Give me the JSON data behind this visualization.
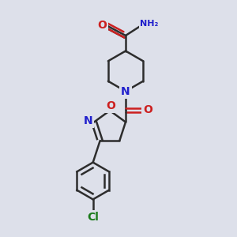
{
  "bg_color": "#dde0ea",
  "bond_color": "#2d2d2d",
  "N_color": "#2020cc",
  "O_color": "#cc2020",
  "Cl_color": "#1a7a1a",
  "font_size": 9,
  "line_width": 1.8,
  "figsize": [
    3.0,
    3.0
  ],
  "dpi": 100,
  "xlim": [
    0,
    10
  ],
  "ylim": [
    0,
    10
  ]
}
